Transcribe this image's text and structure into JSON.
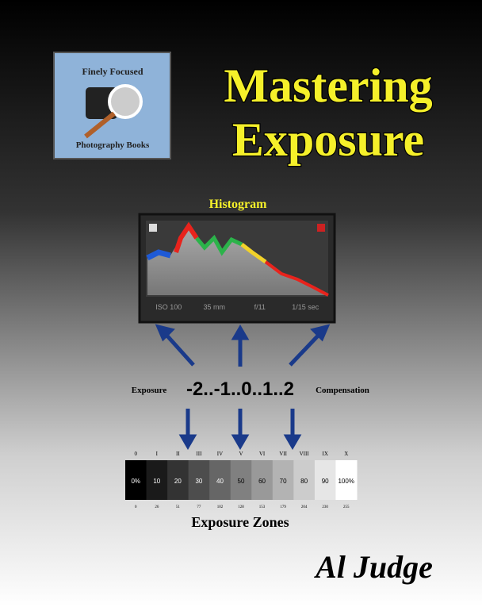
{
  "logo": {
    "top": "Finely Focused",
    "bottom": "Photography Books"
  },
  "title": {
    "line1": "Mastering",
    "line2": "Exposure"
  },
  "histogram": {
    "label": "Histogram",
    "info": [
      "ISO 100",
      "35 mm",
      "f/11",
      "1/15 sec"
    ]
  },
  "compensation": {
    "left": "Exposure",
    "scale": "-2..-1..0..1..2",
    "right": "Compensation"
  },
  "zones": {
    "numerals": [
      "0",
      "I",
      "II",
      "III",
      "IV",
      "V",
      "VI",
      "VII",
      "VIII",
      "IX",
      "X"
    ],
    "percents": [
      "0%",
      "10",
      "20",
      "30",
      "40",
      "50",
      "60",
      "70",
      "80",
      "90",
      "100%"
    ],
    "levels": [
      "0",
      "26",
      "51",
      "77",
      "102",
      "128",
      "153",
      "179",
      "204",
      "230",
      "255"
    ],
    "label": "Exposure Zones"
  },
  "author": "Al Judge"
}
